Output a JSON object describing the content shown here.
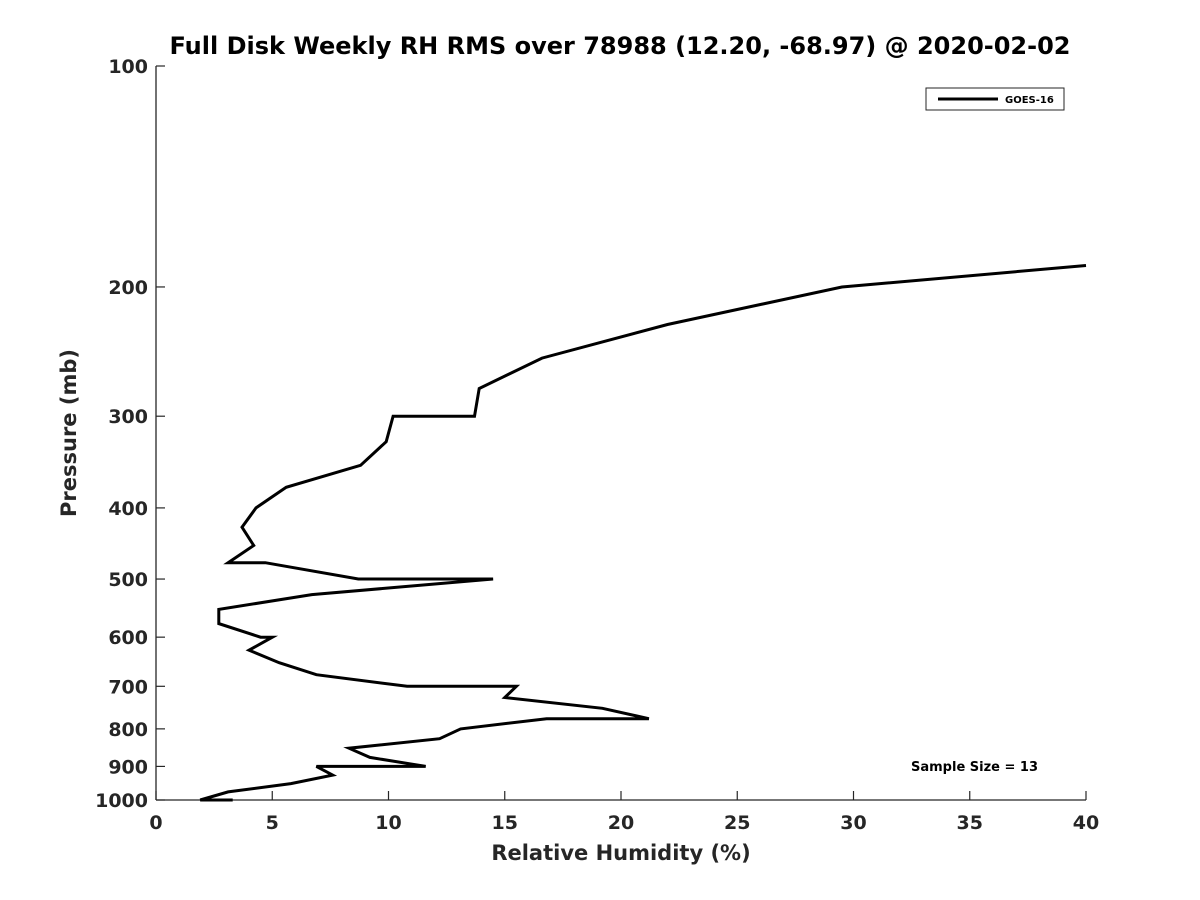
{
  "chart_data": {
    "type": "line",
    "title": "Full Disk Weekly RH RMS over 78988 (12.20, -68.97) @ 2020-02-02",
    "xlabel": "Relative Humidity (%)",
    "ylabel": "Pressure (mb)",
    "xlim": [
      0,
      40
    ],
    "ylim": [
      100,
      1000
    ],
    "y_scale": "log",
    "y_reversed": true,
    "xticks": [
      0,
      5,
      10,
      15,
      20,
      25,
      30,
      35,
      40
    ],
    "yticks": [
      100,
      200,
      300,
      400,
      500,
      600,
      700,
      800,
      900,
      1000
    ],
    "grid": false,
    "legend_position": "top-right",
    "annotation": "Sample Size = 13",
    "series": [
      {
        "name": "GOES-16",
        "color": "#000000",
        "x": [
          40.0,
          29.5,
          22.0,
          16.6,
          13.9,
          13.7,
          10.2,
          9.9,
          8.8,
          5.6,
          4.3,
          3.7,
          4.2,
          3.1,
          4.7,
          8.7,
          14.5,
          6.7,
          2.7,
          2.7,
          4.5,
          5.0,
          4.0,
          5.3,
          6.9,
          10.8,
          15.5,
          15.0,
          19.2,
          21.2,
          16.8,
          13.1,
          12.2,
          8.3,
          9.2,
          11.6,
          6.9,
          7.6,
          5.8,
          3.1,
          1.9,
          3.3
        ],
        "y": [
          187,
          200,
          225,
          250,
          275,
          300,
          300,
          325,
          350,
          375,
          400,
          425,
          450,
          475,
          475,
          500,
          500,
          525,
          550,
          575,
          600,
          600,
          625,
          650,
          675,
          700,
          700,
          725,
          750,
          775,
          775,
          800,
          825,
          850,
          875,
          900,
          900,
          925,
          950,
          975,
          1000,
          1000
        ]
      }
    ]
  }
}
